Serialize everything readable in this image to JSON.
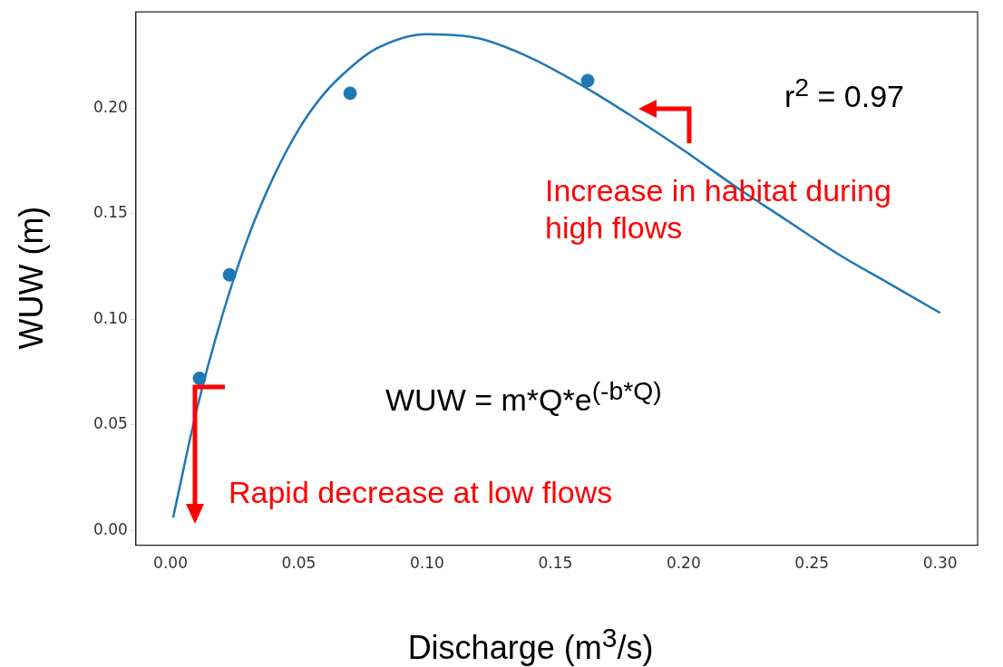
{
  "chart_data": {
    "type": "scatter",
    "xlabel": "Discharge (m$^{3}$/s)",
    "ylabel": "WUW (m)",
    "xlim": [
      -0.0135,
      0.3146
    ],
    "ylim": [
      -0.007,
      0.2455
    ],
    "xticks": [
      {
        "value": 0,
        "label": "0.00"
      },
      {
        "value": 0.05,
        "label": "0.05"
      },
      {
        "value": 0.1,
        "label": "0.10"
      },
      {
        "value": 0.15,
        "label": "0.15"
      },
      {
        "value": 0.2,
        "label": "0.20"
      },
      {
        "value": 0.25,
        "label": "0.25"
      },
      {
        "value": 0.3,
        "label": "0.30"
      }
    ],
    "yticks": [
      {
        "value": 0,
        "label": "0.00"
      },
      {
        "value": 0.05,
        "label": "0.05"
      },
      {
        "value": 0.1,
        "label": "0.10"
      },
      {
        "value": 0.15,
        "label": "0.15"
      },
      {
        "value": 0.2,
        "label": "0.20"
      }
    ],
    "grid": false,
    "legend": false,
    "series": [
      {
        "type": "scatter",
        "marker": "circle",
        "color": "#1f77b4",
        "x": [
          0.0113,
          0.023,
          0.07,
          0.1626
        ],
        "values": [
          0.072,
          0.121,
          0.207,
          0.213
        ]
      },
      {
        "type": "line",
        "marker": "none",
        "color": "#1f77b4",
        "x": [
          0.001,
          0.01,
          0.02,
          0.03,
          0.04,
          0.05,
          0.06,
          0.07,
          0.08,
          0.1,
          0.12,
          0.14,
          0.16,
          0.18,
          0.2,
          0.22,
          0.24,
          0.26,
          0.28,
          0.3
        ],
        "values": [
          0.006,
          0.056,
          0.101,
          0.138,
          0.167,
          0.19,
          0.207,
          0.219,
          0.228,
          0.235,
          0.233,
          0.224,
          0.211,
          0.196,
          0.18,
          0.163,
          0.147,
          0.131,
          0.117,
          0.103
        ]
      }
    ],
    "annotations": [
      "r$^{2}$ = 0.97",
      "Increase in habitat during high flows",
      "WUW = m*Q*e$^{(-b*Q)}$",
      "Rapid decrease at low flows"
    ]
  }
}
